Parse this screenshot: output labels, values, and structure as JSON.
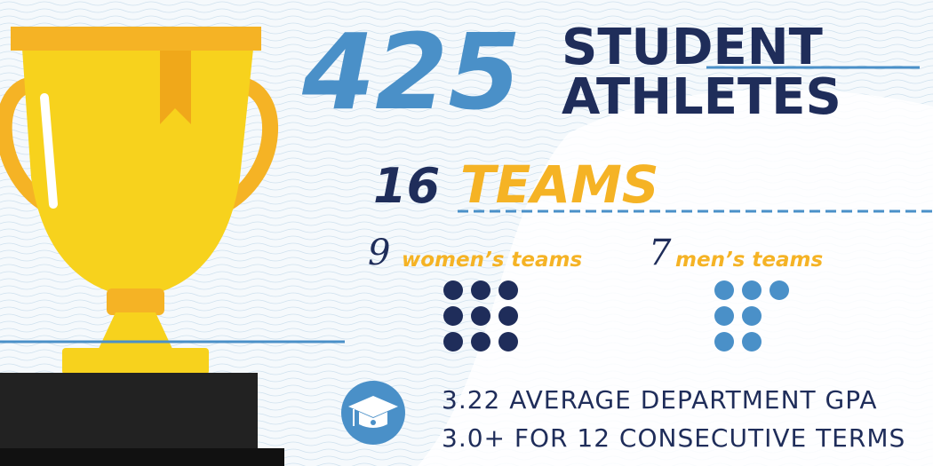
{
  "headline": {
    "number": "425",
    "line1": "STUDENT",
    "line2": "ATHLETES"
  },
  "teams": {
    "number": "16",
    "label": "TEAMS"
  },
  "women": {
    "count": 9,
    "label": "women’s teams"
  },
  "men": {
    "count": 7,
    "label": "men’s teams"
  },
  "stats": [
    "3.22 AVERAGE DEPARTMENT GPA",
    "3.0+ FOR 12 CONSECUTIVE TERMS"
  ]
}
